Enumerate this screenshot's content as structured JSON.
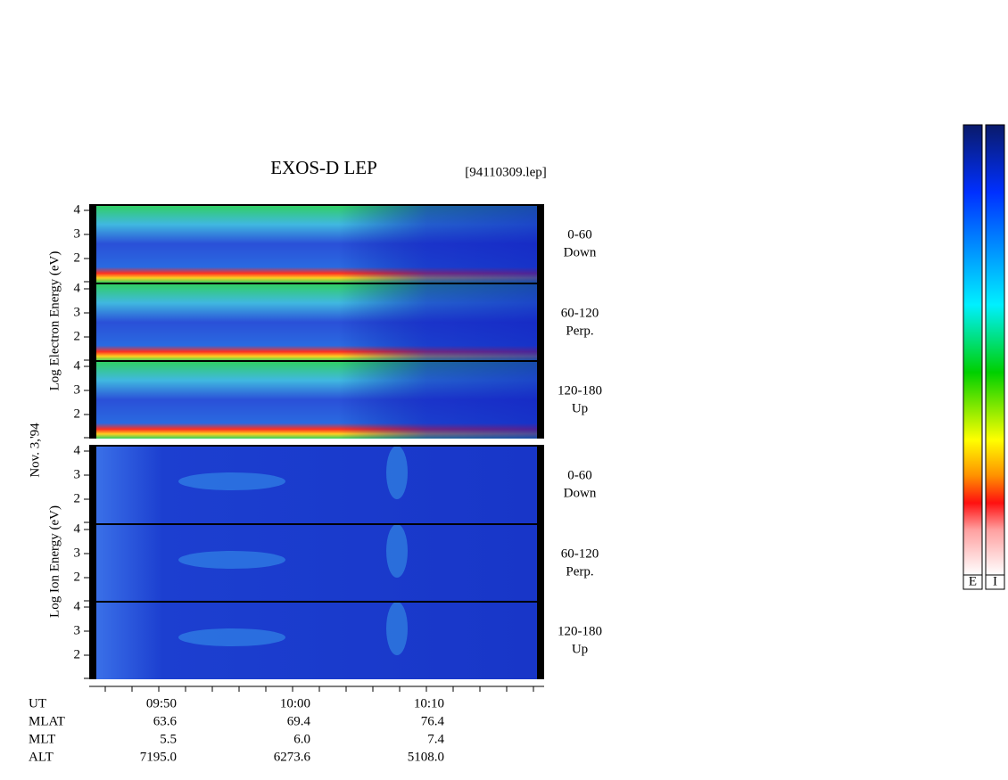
{
  "title": "EXOS-D LEP",
  "file": "[94110309.lep]",
  "date": "Nov. 3,'94",
  "electron": {
    "axis_label": "Log Electron Energy (eV)",
    "panels": [
      {
        "range": "0-60",
        "direction": "Down"
      },
      {
        "range": "60-120",
        "direction": "Perp."
      },
      {
        "range": "120-180",
        "direction": "Up"
      }
    ]
  },
  "ion": {
    "axis_label": "Log Ion Energy (eV)",
    "panels": [
      {
        "range": "0-60",
        "direction": "Down"
      },
      {
        "range": "60-120",
        "direction": "Perp."
      },
      {
        "range": "120-180",
        "direction": "Up"
      }
    ]
  },
  "energy_ticks": [
    "4",
    "3",
    "2"
  ],
  "ephemeris": [
    {
      "label": "UT",
      "values": [
        "09:50",
        "10:00",
        "10:10"
      ]
    },
    {
      "label": "MLAT",
      "values": [
        "63.6",
        "69.4",
        "76.4"
      ]
    },
    {
      "label": "MLT",
      "values": [
        "5.5",
        "6.0",
        "7.4"
      ]
    },
    {
      "label": "ALT",
      "values": [
        "7195.0",
        "6273.6",
        "5108.0"
      ]
    }
  ],
  "colorbars": [
    "E",
    "I"
  ]
}
